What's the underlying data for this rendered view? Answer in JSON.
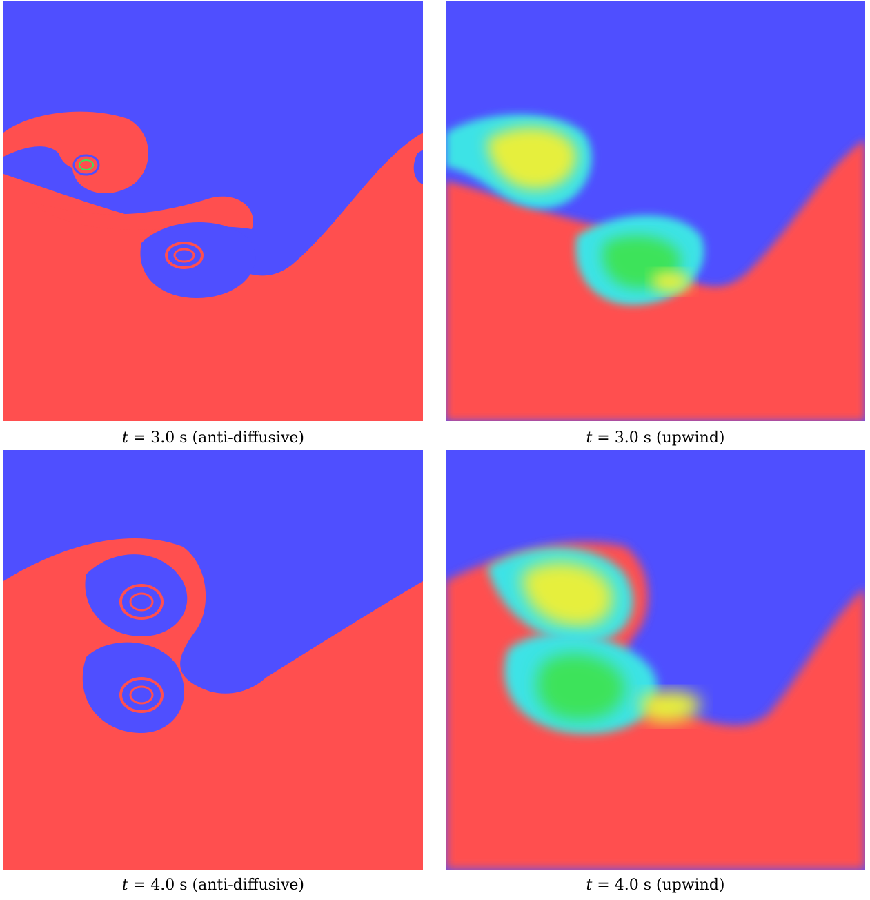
{
  "colors": {
    "heavy": "#ff4f4f",
    "light": "#4f4fff",
    "mixed_yellow": "#e6ef3c",
    "mixed_green": "#3ce35a",
    "mixed_cyan": "#3ce3e6"
  },
  "panels": [
    {
      "caption_t": "t",
      "caption_rest": " = 3.0 s (anti-diffusive)"
    },
    {
      "caption_t": "t",
      "caption_rest": " = 3.0 s (upwind)"
    },
    {
      "caption_t": "t",
      "caption_rest": " = 4.0 s (anti-diffusive)"
    },
    {
      "caption_t": "t",
      "caption_rest": " = 4.0 s (upwind)"
    }
  ]
}
